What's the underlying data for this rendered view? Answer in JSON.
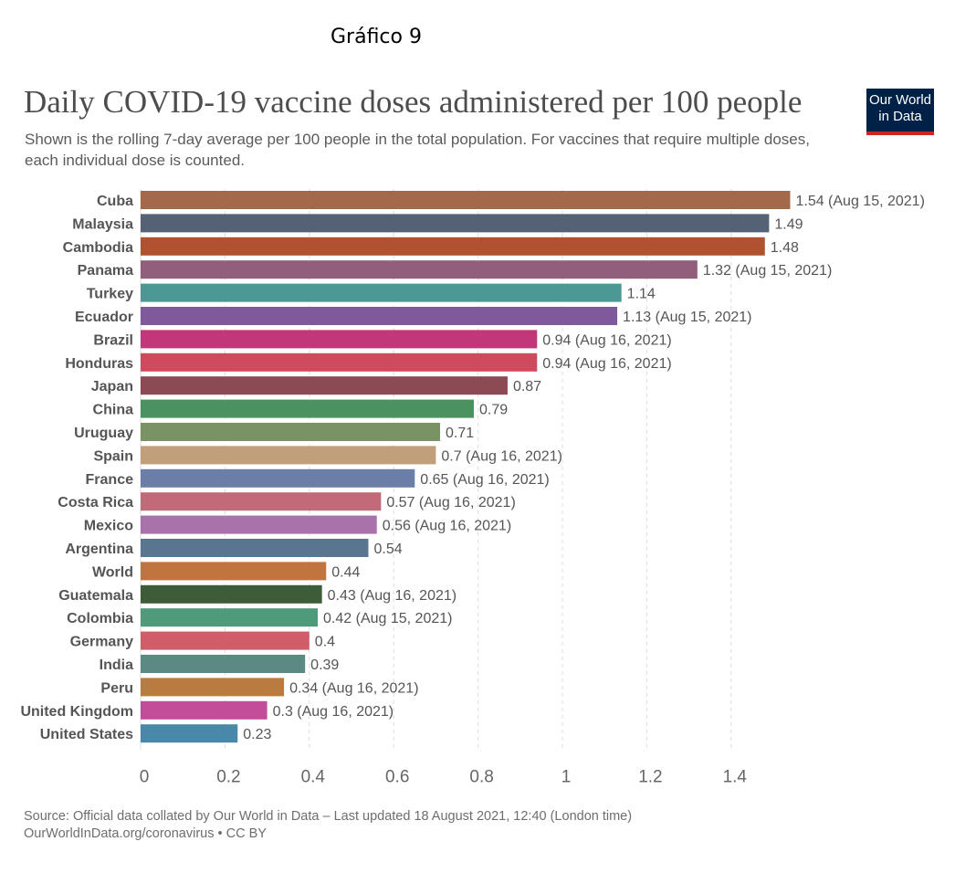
{
  "header": {
    "grafico": "Gráfico 9",
    "title": "Daily COVID-19 vaccine doses administered per 100 people",
    "subtitle": "Shown is the rolling 7-day average per 100 people in the total population. For vaccines that require multiple doses, each individual dose is counted.",
    "logo_line1": "Our World",
    "logo_line2": "in Data"
  },
  "footer": {
    "source": "Source: Official data collated by Our World in Data – Last updated 18 August 2021, 12:40 (London time)",
    "url": "OurWorldInData.org/coronavirus • CC BY"
  },
  "colors": {
    "logo_bg": "#002147",
    "logo_accent": "#ce261e"
  },
  "chart_data": {
    "type": "bar",
    "orientation": "horizontal",
    "xlim": [
      0,
      1.54
    ],
    "xticks": [
      0,
      0.2,
      0.4,
      0.6,
      0.8,
      1,
      1.2,
      1.4
    ],
    "xtick_labels": [
      "0",
      "0.2",
      "0.4",
      "0.6",
      "0.8",
      "1",
      "1.2",
      "1.4"
    ],
    "grid": "vertical dashed",
    "categories": [
      "Cuba",
      "Malaysia",
      "Cambodia",
      "Panama",
      "Turkey",
      "Ecuador",
      "Brazil",
      "Honduras",
      "Japan",
      "China",
      "Uruguay",
      "Spain",
      "France",
      "Costa Rica",
      "Mexico",
      "Argentina",
      "World",
      "Guatemala",
      "Colombia",
      "Germany",
      "India",
      "Peru",
      "United Kingdom",
      "United States"
    ],
    "values": [
      1.54,
      1.49,
      1.48,
      1.32,
      1.14,
      1.13,
      0.94,
      0.94,
      0.87,
      0.79,
      0.71,
      0.7,
      0.65,
      0.57,
      0.56,
      0.54,
      0.44,
      0.43,
      0.42,
      0.4,
      0.39,
      0.34,
      0.3,
      0.23
    ],
    "value_labels": [
      "1.54 (Aug 15, 2021)",
      "1.49",
      "1.48",
      "1.32 (Aug 15, 2021)",
      "1.14",
      "1.13 (Aug 15, 2021)",
      "0.94 (Aug 16, 2021)",
      "0.94 (Aug 16, 2021)",
      "0.87",
      "0.79",
      "0.71",
      "0.7 (Aug 16, 2021)",
      "0.65 (Aug 16, 2021)",
      "0.57 (Aug 16, 2021)",
      "0.56 (Aug 16, 2021)",
      "0.54",
      "0.44",
      "0.43 (Aug 16, 2021)",
      "0.42 (Aug 15, 2021)",
      "0.4",
      "0.39",
      "0.34 (Aug 16, 2021)",
      "0.3 (Aug 16, 2021)",
      "0.23"
    ],
    "bar_colors": [
      "#a2694b",
      "#556275",
      "#b0522f",
      "#915e7c",
      "#4b9895",
      "#7e5a9c",
      "#c1377a",
      "#cf4a5c",
      "#8c4a55",
      "#4a925e",
      "#7a9365",
      "#c19f7a",
      "#6b7ea8",
      "#c16b79",
      "#a873aa",
      "#5a7590",
      "#c0753f",
      "#3f5c38",
      "#4f9a7a",
      "#d05d67",
      "#5a8a82",
      "#b97b3e",
      "#c44d9a",
      "#4a88aa"
    ]
  }
}
